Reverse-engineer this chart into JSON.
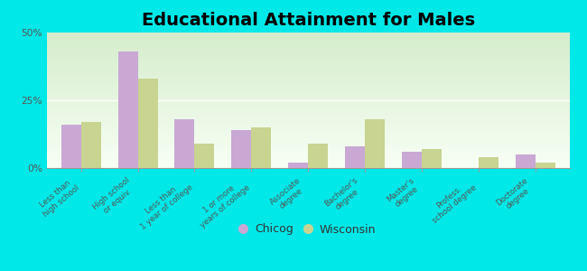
{
  "title": "Educational Attainment for Males",
  "categories": [
    "Less than\nhigh school",
    "High school\nor equiv.",
    "Less than\n1 year of college",
    "1 or more\nyears of college",
    "Associate\ndegree",
    "Bachelor's\ndegree",
    "Master's\ndegree",
    "Profess.\nschool degree",
    "Doctorate\ndegree"
  ],
  "chicog": [
    16,
    43,
    18,
    14,
    2,
    8,
    6,
    0,
    5
  ],
  "wisconsin": [
    17,
    33,
    9,
    15,
    9,
    18,
    7,
    4,
    2
  ],
  "chicog_color": "#c9a8d4",
  "wisconsin_color": "#c8d490",
  "background_color": "#00e8e8",
  "plot_bg_color": "#eaf5e2",
  "ylim": [
    0,
    50
  ],
  "yticks": [
    0,
    25,
    50
  ],
  "ytick_labels": [
    "0%",
    "25%",
    "50%"
  ],
  "bar_width": 0.35,
  "legend_labels": [
    "Chicog",
    "Wisconsin"
  ],
  "title_fontsize": 14,
  "tick_fontsize": 6.2,
  "legend_fontsize": 9
}
